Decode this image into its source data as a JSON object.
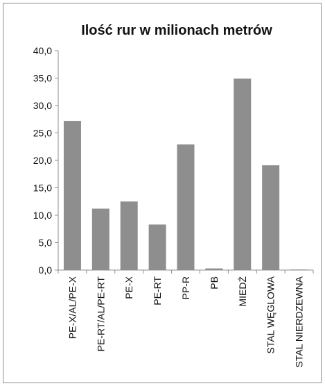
{
  "chart_data": {
    "type": "bar",
    "title": "Ilość rur w milionach metrów",
    "xlabel": "",
    "ylabel": "",
    "categories": [
      "PE-X/AL/PE-X",
      "PE-RT/AL/PE-RT",
      "PE-X",
      "PE-RT",
      "PP-R",
      "PB",
      "MIEDŹ",
      "STAL WĘGLOWA",
      "STAL NIERDZEWNA"
    ],
    "values": [
      27.2,
      11.2,
      12.5,
      8.3,
      22.9,
      0.3,
      34.9,
      19.1,
      0.1
    ],
    "ylim": [
      0,
      40
    ],
    "yticks": [
      "0,0",
      "5,0",
      "10,0",
      "15,0",
      "20,0",
      "25,0",
      "30,0",
      "35,0",
      "40,0"
    ],
    "ytick_values": [
      0,
      5,
      10,
      15,
      20,
      25,
      30,
      35,
      40
    ],
    "grid": false,
    "legend": "none",
    "colors": {
      "bar": "#8e8e8e",
      "axis": "#8c8c8c",
      "frame": "#8c8c8c",
      "text": "#111111"
    }
  }
}
